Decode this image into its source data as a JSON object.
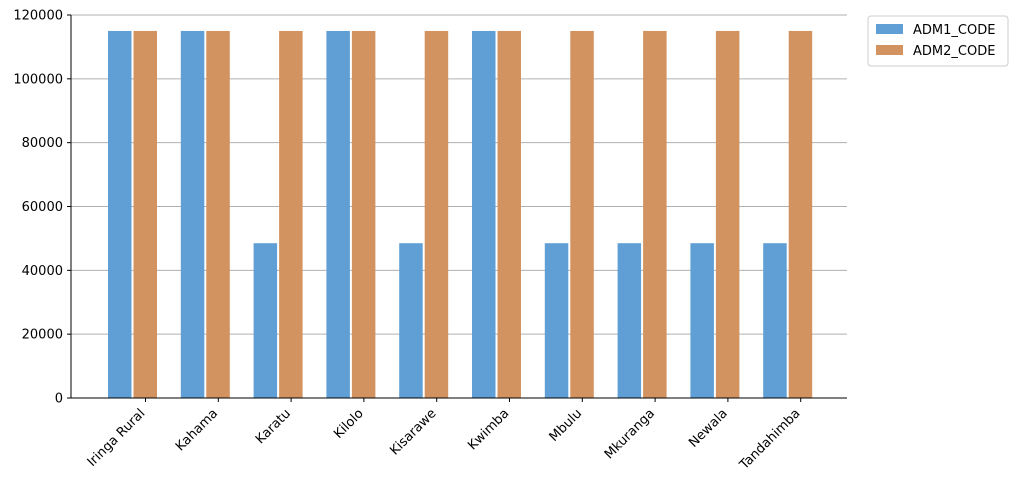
{
  "chart_data": {
    "type": "bar",
    "categories": [
      "Iringa Rural",
      "Kahama",
      "Karatu",
      "Kilolo",
      "Kisarawe",
      "Kwimba",
      "Mbulu",
      "Mkuranga",
      "Newala",
      "Tandahimba"
    ],
    "series": [
      {
        "name": "ADM1_CODE",
        "color": "#5f9fd5",
        "values": [
          115000,
          115000,
          48500,
          115000,
          48500,
          115000,
          48500,
          48500,
          48500,
          48500
        ]
      },
      {
        "name": "ADM2_CODE",
        "color": "#d39360",
        "values": [
          115000,
          115000,
          115000,
          115000,
          115000,
          115000,
          115000,
          115000,
          115000,
          115000
        ]
      }
    ],
    "yticks": [
      0,
      20000,
      40000,
      60000,
      80000,
      100000,
      120000
    ],
    "ytick_labels": [
      "0",
      "20000",
      "40000",
      "60000",
      "80000",
      "100000",
      "120000"
    ],
    "ylim": [
      0,
      120000
    ],
    "grid": "y",
    "legend_position": "outside-top-right",
    "xtick_rotation": -45
  }
}
